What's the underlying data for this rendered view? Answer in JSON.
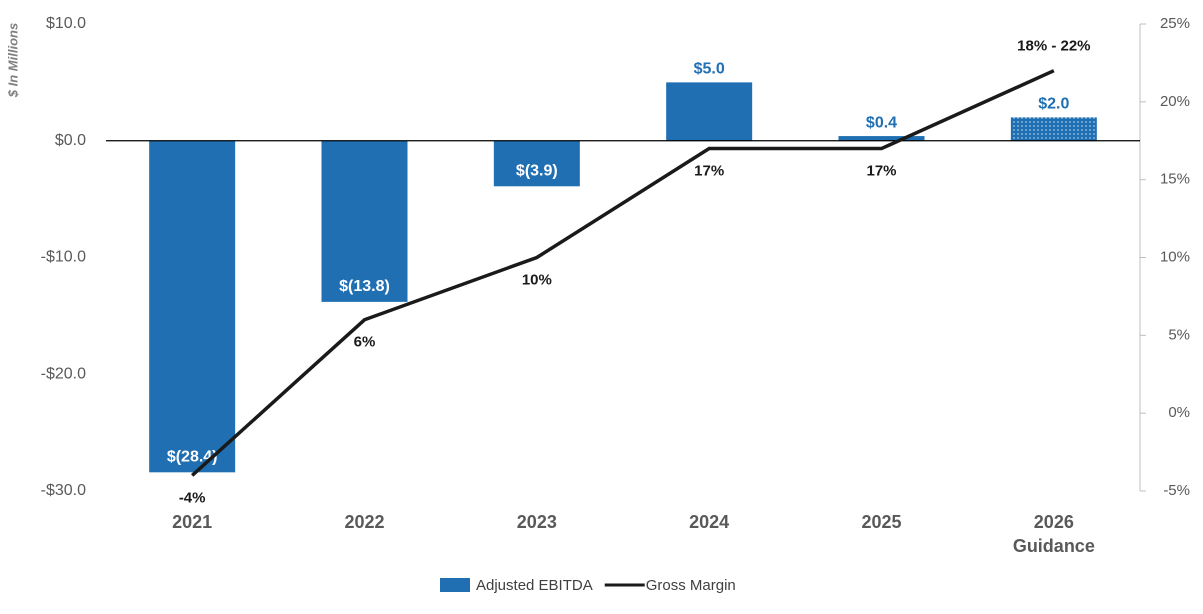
{
  "chart_data": {
    "type": "bar-line",
    "y_axis_label": "$ In Millions",
    "categories": [
      "2021",
      "2022",
      "2023",
      "2024",
      "2025",
      "2026 Guidance"
    ],
    "series": [
      {
        "name": "Adjusted EBITDA",
        "type": "bar",
        "color": "#1f6fb2",
        "values": [
          -28.4,
          -13.8,
          -3.9,
          5.0,
          0.4,
          2.0
        ],
        "value_labels": [
          "$(28.4)",
          "$(13.8)",
          "$(3.9)",
          "$5.0",
          "$0.4",
          "$2.0"
        ],
        "bar_pattern": [
          "solid",
          "solid",
          "solid",
          "solid",
          "solid",
          "dotted"
        ]
      },
      {
        "name": "Gross Margin",
        "type": "line",
        "axis": "y2",
        "color": "#1a1a1a",
        "values": [
          -4,
          6,
          10,
          17,
          17,
          22
        ],
        "value_labels": [
          "-4%",
          "6%",
          "10%",
          "17%",
          "17%",
          "18% - 22%"
        ]
      }
    ],
    "ylim": [
      -30,
      10
    ],
    "yticks": [
      {
        "value": -30,
        "label": "-$30.0"
      },
      {
        "value": -20,
        "label": "-$20.0"
      },
      {
        "value": -10,
        "label": "-$10.0"
      },
      {
        "value": 0,
        "label": "$0.0"
      },
      {
        "value": 10,
        "label": "$10.0"
      }
    ],
    "y2lim": [
      -5,
      25
    ],
    "y2ticks": [
      {
        "value": -5,
        "label": "-5%"
      },
      {
        "value": 0,
        "label": "0%"
      },
      {
        "value": 5,
        "label": "5%"
      },
      {
        "value": 10,
        "label": "10%"
      },
      {
        "value": 15,
        "label": "15%"
      },
      {
        "value": 20,
        "label": "20%"
      },
      {
        "value": 25,
        "label": "25%"
      }
    ],
    "legend": "bottom"
  }
}
